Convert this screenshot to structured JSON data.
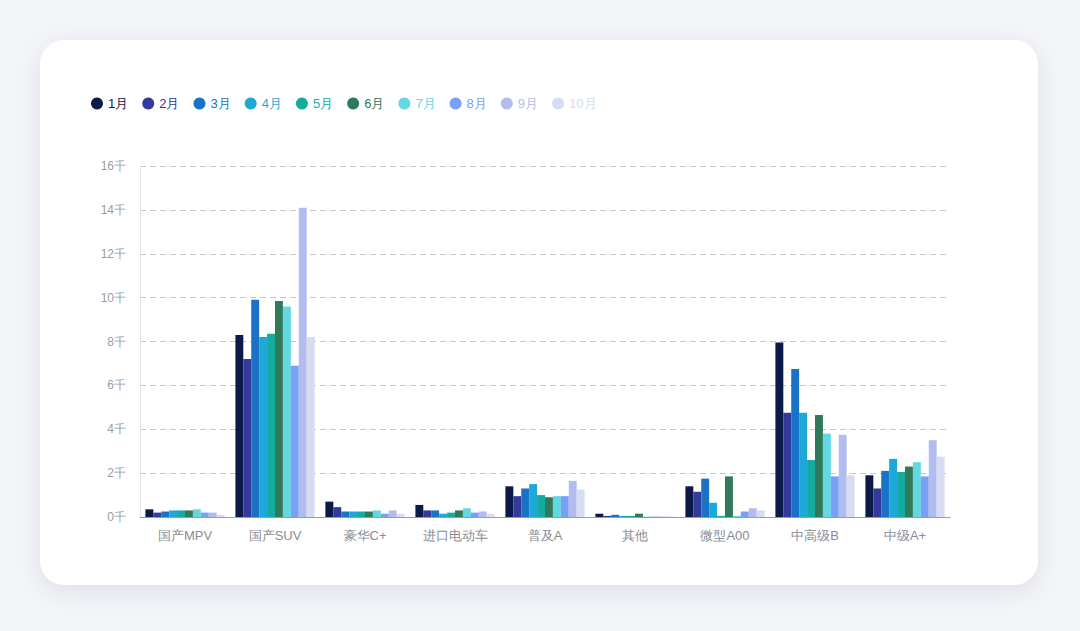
{
  "chart_data": {
    "type": "bar",
    "categories": [
      "国产MPV",
      "国产SUV",
      "豪华C+",
      "进口电动车",
      "普及A",
      "其他",
      "微型A00",
      "中高级B",
      "中级A+"
    ],
    "series": [
      {
        "name": "1月",
        "color": "#0c1a4a",
        "values": [
          0.35,
          8.3,
          0.7,
          0.55,
          1.4,
          0.15,
          1.4,
          7.95,
          1.9
        ]
      },
      {
        "name": "2月",
        "color": "#343a9c",
        "values": [
          0.2,
          7.2,
          0.45,
          0.3,
          0.95,
          0.05,
          1.15,
          4.75,
          1.3
        ]
      },
      {
        "name": "3月",
        "color": "#1a72c6",
        "values": [
          0.25,
          9.9,
          0.25,
          0.3,
          1.3,
          0.1,
          1.75,
          6.75,
          2.1
        ]
      },
      {
        "name": "4月",
        "color": "#1ea8d8",
        "values": [
          0.3,
          8.2,
          0.25,
          0.15,
          1.5,
          0.05,
          0.65,
          4.75,
          2.65
        ]
      },
      {
        "name": "5月",
        "color": "#14aba0",
        "values": [
          0.3,
          8.35,
          0.25,
          0.2,
          1.0,
          0.05,
          0.05,
          2.6,
          2.05
        ]
      },
      {
        "name": "6月",
        "color": "#2f7a5a",
        "values": [
          0.3,
          9.85,
          0.25,
          0.3,
          0.9,
          0.15,
          1.85,
          4.65,
          2.3
        ]
      },
      {
        "name": "7月",
        "color": "#62d8e2",
        "values": [
          0.35,
          9.6,
          0.3,
          0.4,
          0.95,
          0.02,
          0.05,
          3.8,
          2.5
        ]
      },
      {
        "name": "8月",
        "color": "#79a0f5",
        "values": [
          0.2,
          6.9,
          0.15,
          0.2,
          0.95,
          0.02,
          0.25,
          1.85,
          1.85
        ]
      },
      {
        "name": "9月",
        "color": "#b3bcee",
        "values": [
          0.2,
          14.1,
          0.3,
          0.25,
          1.65,
          0.02,
          0.4,
          3.75,
          3.5
        ]
      },
      {
        "name": "10月",
        "color": "#d6dcf2",
        "values": [
          0.1,
          8.2,
          0.15,
          0.15,
          1.25,
          0.02,
          0.3,
          1.9,
          2.75
        ]
      }
    ],
    "ylim": [
      0,
      16
    ],
    "yticks": [
      {
        "value": 0,
        "label": "0千"
      },
      {
        "value": 2,
        "label": "2千"
      },
      {
        "value": 4,
        "label": "4千"
      },
      {
        "value": 6,
        "label": "6千"
      },
      {
        "value": 8,
        "label": "8千"
      },
      {
        "value": 10,
        "label": "10千"
      },
      {
        "value": 12,
        "label": "12千"
      },
      {
        "value": 14,
        "label": "14千"
      },
      {
        "value": 16,
        "label": "16千"
      }
    ],
    "grid": true,
    "legend": "top-left"
  }
}
